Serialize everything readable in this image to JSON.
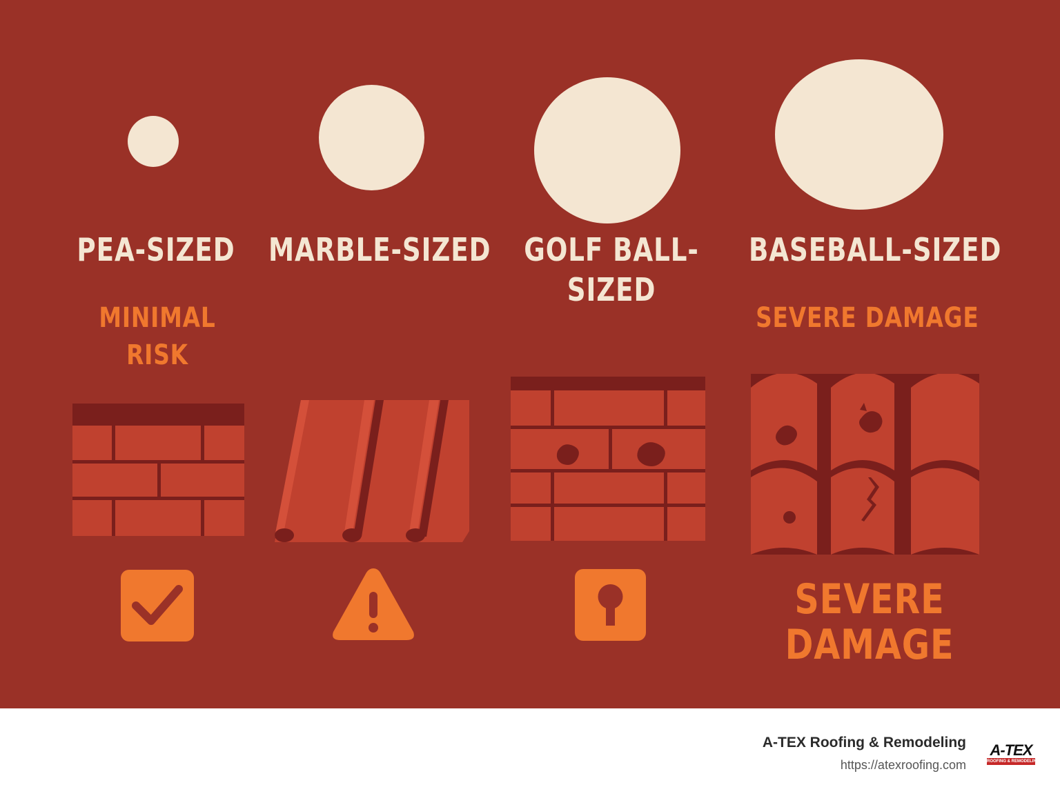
{
  "colors": {
    "background": "#9a3127",
    "cream": "#f4e6d2",
    "accent_orange": "#f0782e",
    "brick": "#c0412f",
    "mortar": "#7a1f1c",
    "footer_bg": "#ffffff"
  },
  "columns": [
    {
      "size_label": "PEA-SIZED",
      "risk_label": "MINIMAL\nRISK",
      "roof_type": "brick-roof",
      "icon": "checkmark-icon"
    },
    {
      "size_label": "MARBLE-SIZED",
      "risk_label": "",
      "roof_type": "metal-panel-roof",
      "icon": "warning-triangle-icon"
    },
    {
      "size_label": "GOLF BALL-\nSIZED",
      "risk_label": "",
      "roof_type": "damaged-brick-roof",
      "icon": "keyhole-icon"
    },
    {
      "size_label": "BASEBALL-SIZED",
      "risk_label": "SEVERE DAMAGE",
      "roof_type": "cracked-tile-roof",
      "bottom_label": "SEVERE\nDAMAGE"
    }
  ],
  "footer": {
    "company_name": "A-TEX Roofing & Remodeling",
    "url": "https://atexroofing.com",
    "logo_main": "A-TEX",
    "logo_sub": "ROOFING & REMODELING"
  }
}
